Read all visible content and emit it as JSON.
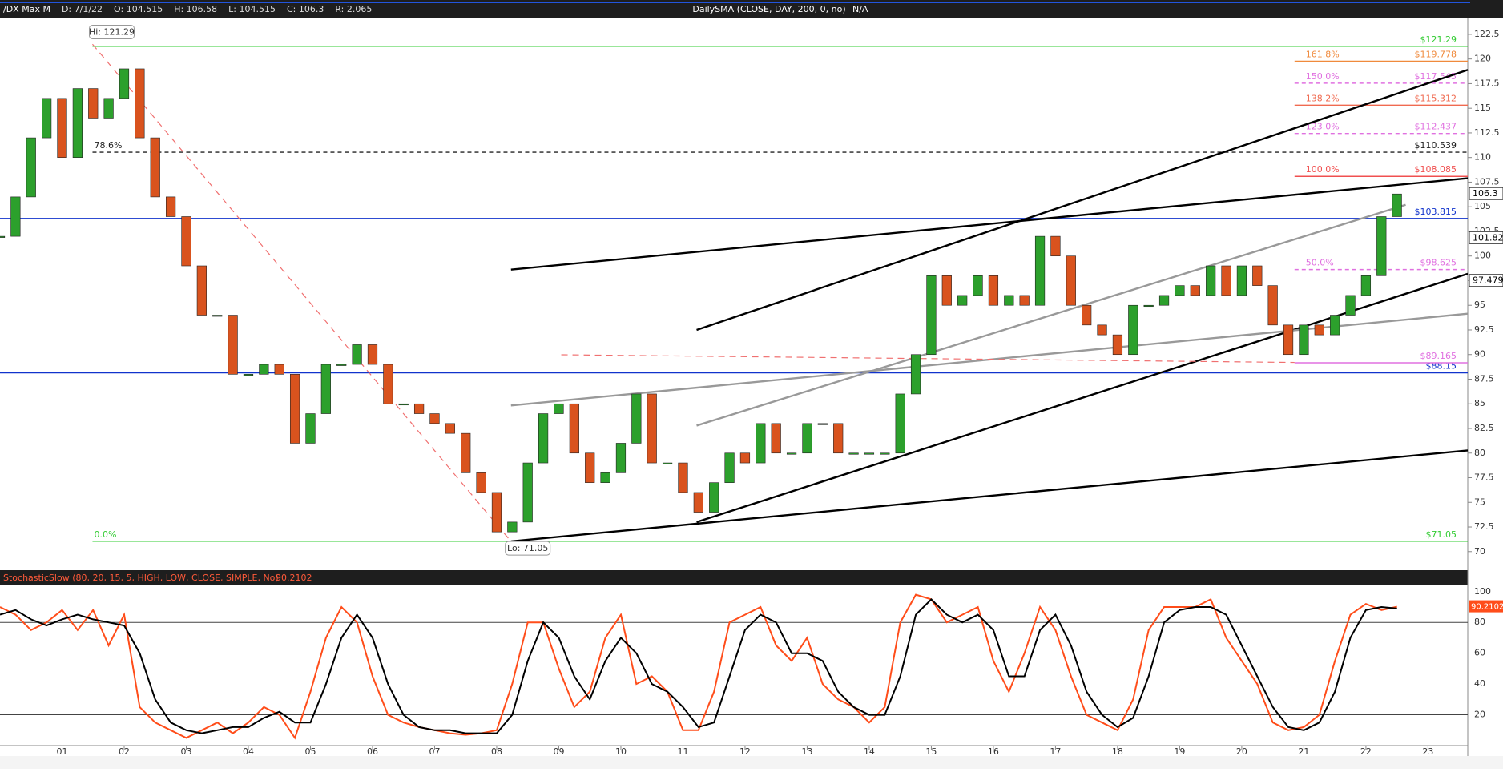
{
  "chart_data": {
    "type": "candlestick",
    "header": [
      "/DX Max M",
      "D: 7/1/22",
      "O: 104.515",
      "H: 106.58",
      "L: 104.515",
      "C: 106.3",
      "R: 2.065"
    ],
    "study_label": "DailySMA (CLOSE, DAY, 200, 0, no)",
    "study_value": "N/A",
    "hi_label": "Hi: 121.29",
    "lo_label": "Lo: 71.05",
    "x": [
      2000,
      2000.25,
      2000.5,
      2000.75,
      2001,
      2001.25,
      2001.5,
      2001.75,
      2002,
      2002.25,
      2002.5,
      2002.75,
      2003,
      2003.25,
      2003.5,
      2003.75,
      2004,
      2004.25,
      2004.5,
      2004.75,
      2005,
      2005.25,
      2005.5,
      2005.75,
      2006,
      2006.25,
      2006.5,
      2006.75,
      2007,
      2007.25,
      2007.5,
      2007.75,
      2008,
      2008.25,
      2008.5,
      2008.75,
      2009,
      2009.25,
      2009.5,
      2009.75,
      2010,
      2010.25,
      2010.5,
      2010.75,
      2011,
      2011.25,
      2011.5,
      2011.75,
      2012,
      2012.25,
      2012.5,
      2012.75,
      2013,
      2013.25,
      2013.5,
      2013.75,
      2014,
      2014.25,
      2014.5,
      2014.75,
      2015,
      2015.25,
      2015.5,
      2015.75,
      2016,
      2016.25,
      2016.5,
      2016.75,
      2017,
      2017.25,
      2017.5,
      2017.75,
      2018,
      2018.25,
      2018.5,
      2018.75,
      2019,
      2019.25,
      2019.5,
      2019.75,
      2020,
      2020.25,
      2020.5,
      2020.75,
      2021,
      2021.25,
      2021.5,
      2021.75,
      2022,
      2022.25,
      2022.5
    ],
    "close": [
      102,
      106,
      112,
      116,
      110,
      117,
      114,
      116,
      119,
      112,
      106,
      104,
      99,
      94,
      94,
      88,
      88,
      89,
      88,
      81,
      84,
      89,
      89,
      91,
      89,
      85,
      85,
      84,
      83,
      82,
      78,
      76,
      72,
      73,
      79,
      84,
      85,
      80,
      77,
      78,
      81,
      86,
      79,
      79,
      76,
      74,
      77,
      80,
      79,
      83,
      80,
      80,
      83,
      83,
      80,
      80,
      80,
      80,
      86,
      90,
      98,
      95,
      96,
      98,
      95,
      96,
      95,
      102,
      100,
      95,
      93,
      92,
      90,
      95,
      95,
      96,
      97,
      96,
      99,
      96,
      99,
      97,
      93,
      90,
      93,
      92,
      94,
      96,
      98,
      104,
      106.3
    ],
    "up_color": "#2ca02c",
    "down_color": "#d9531e",
    "xlim": [
      2000.0,
      2023.64
    ],
    "xticks": [
      {
        "value": 2001,
        "label": "01"
      },
      {
        "value": 2002,
        "label": "02"
      },
      {
        "value": 2003,
        "label": "03"
      },
      {
        "value": 2004,
        "label": "04"
      },
      {
        "value": 2005,
        "label": "05"
      },
      {
        "value": 2006,
        "label": "06"
      },
      {
        "value": 2007,
        "label": "07"
      },
      {
        "value": 2008,
        "label": "08"
      },
      {
        "value": 2009,
        "label": "09"
      },
      {
        "value": 2010,
        "label": "10"
      },
      {
        "value": 2011,
        "label": "11"
      },
      {
        "value": 2012,
        "label": "12"
      },
      {
        "value": 2013,
        "label": "13"
      },
      {
        "value": 2014,
        "label": "14"
      },
      {
        "value": 2015,
        "label": "15"
      },
      {
        "value": 2016,
        "label": "16"
      },
      {
        "value": 2017,
        "label": "17"
      },
      {
        "value": 2018,
        "label": "18"
      },
      {
        "value": 2019,
        "label": "19"
      },
      {
        "value": 2020,
        "label": "20"
      },
      {
        "value": 2021,
        "label": "21"
      },
      {
        "value": 2022,
        "label": "22"
      },
      {
        "value": 2023,
        "label": "23"
      }
    ],
    "ylim": [
      68.6,
      124.2
    ],
    "yticks": [
      70,
      72.5,
      75,
      77.5,
      80,
      82.5,
      85,
      87.5,
      90,
      92.5,
      95,
      97.5,
      100,
      102.5,
      105,
      107.5,
      110,
      112.5,
      115,
      117.5,
      120,
      122.5
    ],
    "levels": [
      {
        "value": 121.29,
        "label": "$121.29",
        "color": "#33cc33",
        "dashed": false,
        "from": 2001.49
      },
      {
        "value": 71.05,
        "label": "$71.05",
        "pct": "0.0%",
        "color": "#33cc33",
        "dashed": false,
        "from": 2001.49
      },
      {
        "value": 110.539,
        "label": "$110.539",
        "pct": "78.6%",
        "color": "#222222",
        "dashed": true,
        "from": 2001.49
      },
      {
        "value": 103.815,
        "label": "$103.815",
        "color": "#1133cc",
        "dashed": false,
        "from": 2000.0
      },
      {
        "value": 88.15,
        "label": "$88.15",
        "color": "#1133cc",
        "dashed": false,
        "from": 2000.0
      },
      {
        "value": 119.778,
        "label": "$119.778",
        "pct": "161.8%",
        "color": "#f08a3c",
        "dashed": false,
        "from": 2020.85
      },
      {
        "value": 117.545,
        "label": "$117.545",
        "pct": "150.0%",
        "color": "#e070e0",
        "dashed": true,
        "from": 2020.85
      },
      {
        "value": 115.312,
        "label": "$115.312",
        "pct": "138.2%",
        "color": "#f06a50",
        "dashed": false,
        "from": 2020.85
      },
      {
        "value": 112.437,
        "label": "$112.437",
        "pct": "123.0%",
        "color": "#e070e0",
        "dashed": true,
        "from": 2020.85
      },
      {
        "value": 108.085,
        "label": "$108.085",
        "pct": "100.0%",
        "color": "#f05050",
        "dashed": false,
        "from": 2020.85
      },
      {
        "value": 98.625,
        "label": "$98.625",
        "pct": "50.0%",
        "color": "#e070e0",
        "dashed": true,
        "from": 2020.85
      },
      {
        "value": 89.165,
        "label": "$89.165",
        "color": "#e070e0",
        "dashed": false,
        "from": 2020.85
      }
    ],
    "trendlines": [
      {
        "x": [
          2008.23,
          2023.64
        ],
        "y": [
          98.62,
          107.9
        ],
        "color": "#000000",
        "dashed": false
      },
      {
        "x": [
          2011.22,
          2023.64
        ],
        "y": [
          92.5,
          118.9
        ],
        "color": "#000000",
        "dashed": false
      },
      {
        "x": [
          2011.22,
          2023.64
        ],
        "y": [
          73.0,
          98.2
        ],
        "color": "#000000",
        "dashed": false
      },
      {
        "x": [
          2008.23,
          2023.64
        ],
        "y": [
          71.04,
          80.27
        ],
        "color": "#000000",
        "dashed": false
      },
      {
        "x": [
          2008.23,
          2023.64
        ],
        "y": [
          84.83,
          94.15
        ],
        "color": "#999999",
        "dashed": false
      },
      {
        "x": [
          2011.22,
          2022.64
        ],
        "y": [
          82.79,
          105.2
        ],
        "color": "#999999",
        "dashed": false
      },
      {
        "x": [
          2001.49,
          2008.23
        ],
        "y": [
          121.5,
          71.04
        ],
        "color": "#f07070",
        "dashed": true
      },
      {
        "x": [
          2009.04,
          2020.85
        ],
        "y": [
          89.98,
          89.2
        ],
        "color": "#f07070",
        "dashed": true
      }
    ],
    "price_tags": [
      {
        "value": 106.3,
        "label": "106.3"
      },
      {
        "value": 101.82,
        "label": "101.82"
      },
      {
        "value": 97.479,
        "label": "97.479"
      }
    ],
    "stochastic": {
      "label": "StochasticSlow (80, 20, 15, 5, HIGH, LOW, CLOSE, SIMPLE, No)",
      "value_label": "90.2102",
      "ylim": [
        0,
        103
      ],
      "yticks": [
        20,
        40,
        60,
        80,
        100
      ],
      "bands": [
        20,
        80
      ],
      "series": [
        {
          "color": "#ff4d1a",
          "values": [
            90,
            85,
            75,
            80,
            88,
            75,
            88,
            65,
            85,
            25,
            15,
            10,
            5,
            10,
            15,
            8,
            15,
            25,
            20,
            5,
            35,
            70,
            90,
            80,
            45,
            20,
            15,
            12,
            10,
            8,
            7,
            8,
            10,
            40,
            80,
            80,
            50,
            25,
            35,
            70,
            85,
            40,
            45,
            35,
            10,
            10,
            35,
            80,
            85,
            90,
            65,
            55,
            70,
            40,
            30,
            25,
            15,
            25,
            80,
            98,
            95,
            80,
            85,
            90,
            55,
            35,
            60,
            90,
            75,
            45,
            20,
            15,
            10,
            30,
            75,
            90,
            90,
            90,
            95,
            70,
            55,
            40,
            15,
            10,
            12,
            20,
            55,
            85,
            92,
            88,
            90.2102
          ]
        },
        {
          "color": "#000000",
          "values": [
            85,
            88,
            82,
            78,
            82,
            85,
            82,
            80,
            78,
            60,
            30,
            15,
            10,
            8,
            10,
            12,
            12,
            18,
            22,
            15,
            15,
            40,
            70,
            85,
            70,
            40,
            20,
            12,
            10,
            10,
            8,
            8,
            8,
            20,
            55,
            80,
            70,
            45,
            30,
            55,
            70,
            60,
            40,
            35,
            25,
            12,
            15,
            45,
            75,
            85,
            80,
            60,
            60,
            55,
            35,
            25,
            20,
            20,
            45,
            85,
            95,
            85,
            80,
            85,
            75,
            45,
            45,
            75,
            85,
            65,
            35,
            20,
            12,
            18,
            45,
            80,
            88,
            90,
            90,
            85,
            65,
            45,
            25,
            12,
            10,
            15,
            35,
            70,
            88,
            90,
            89
          ]
        }
      ]
    }
  }
}
